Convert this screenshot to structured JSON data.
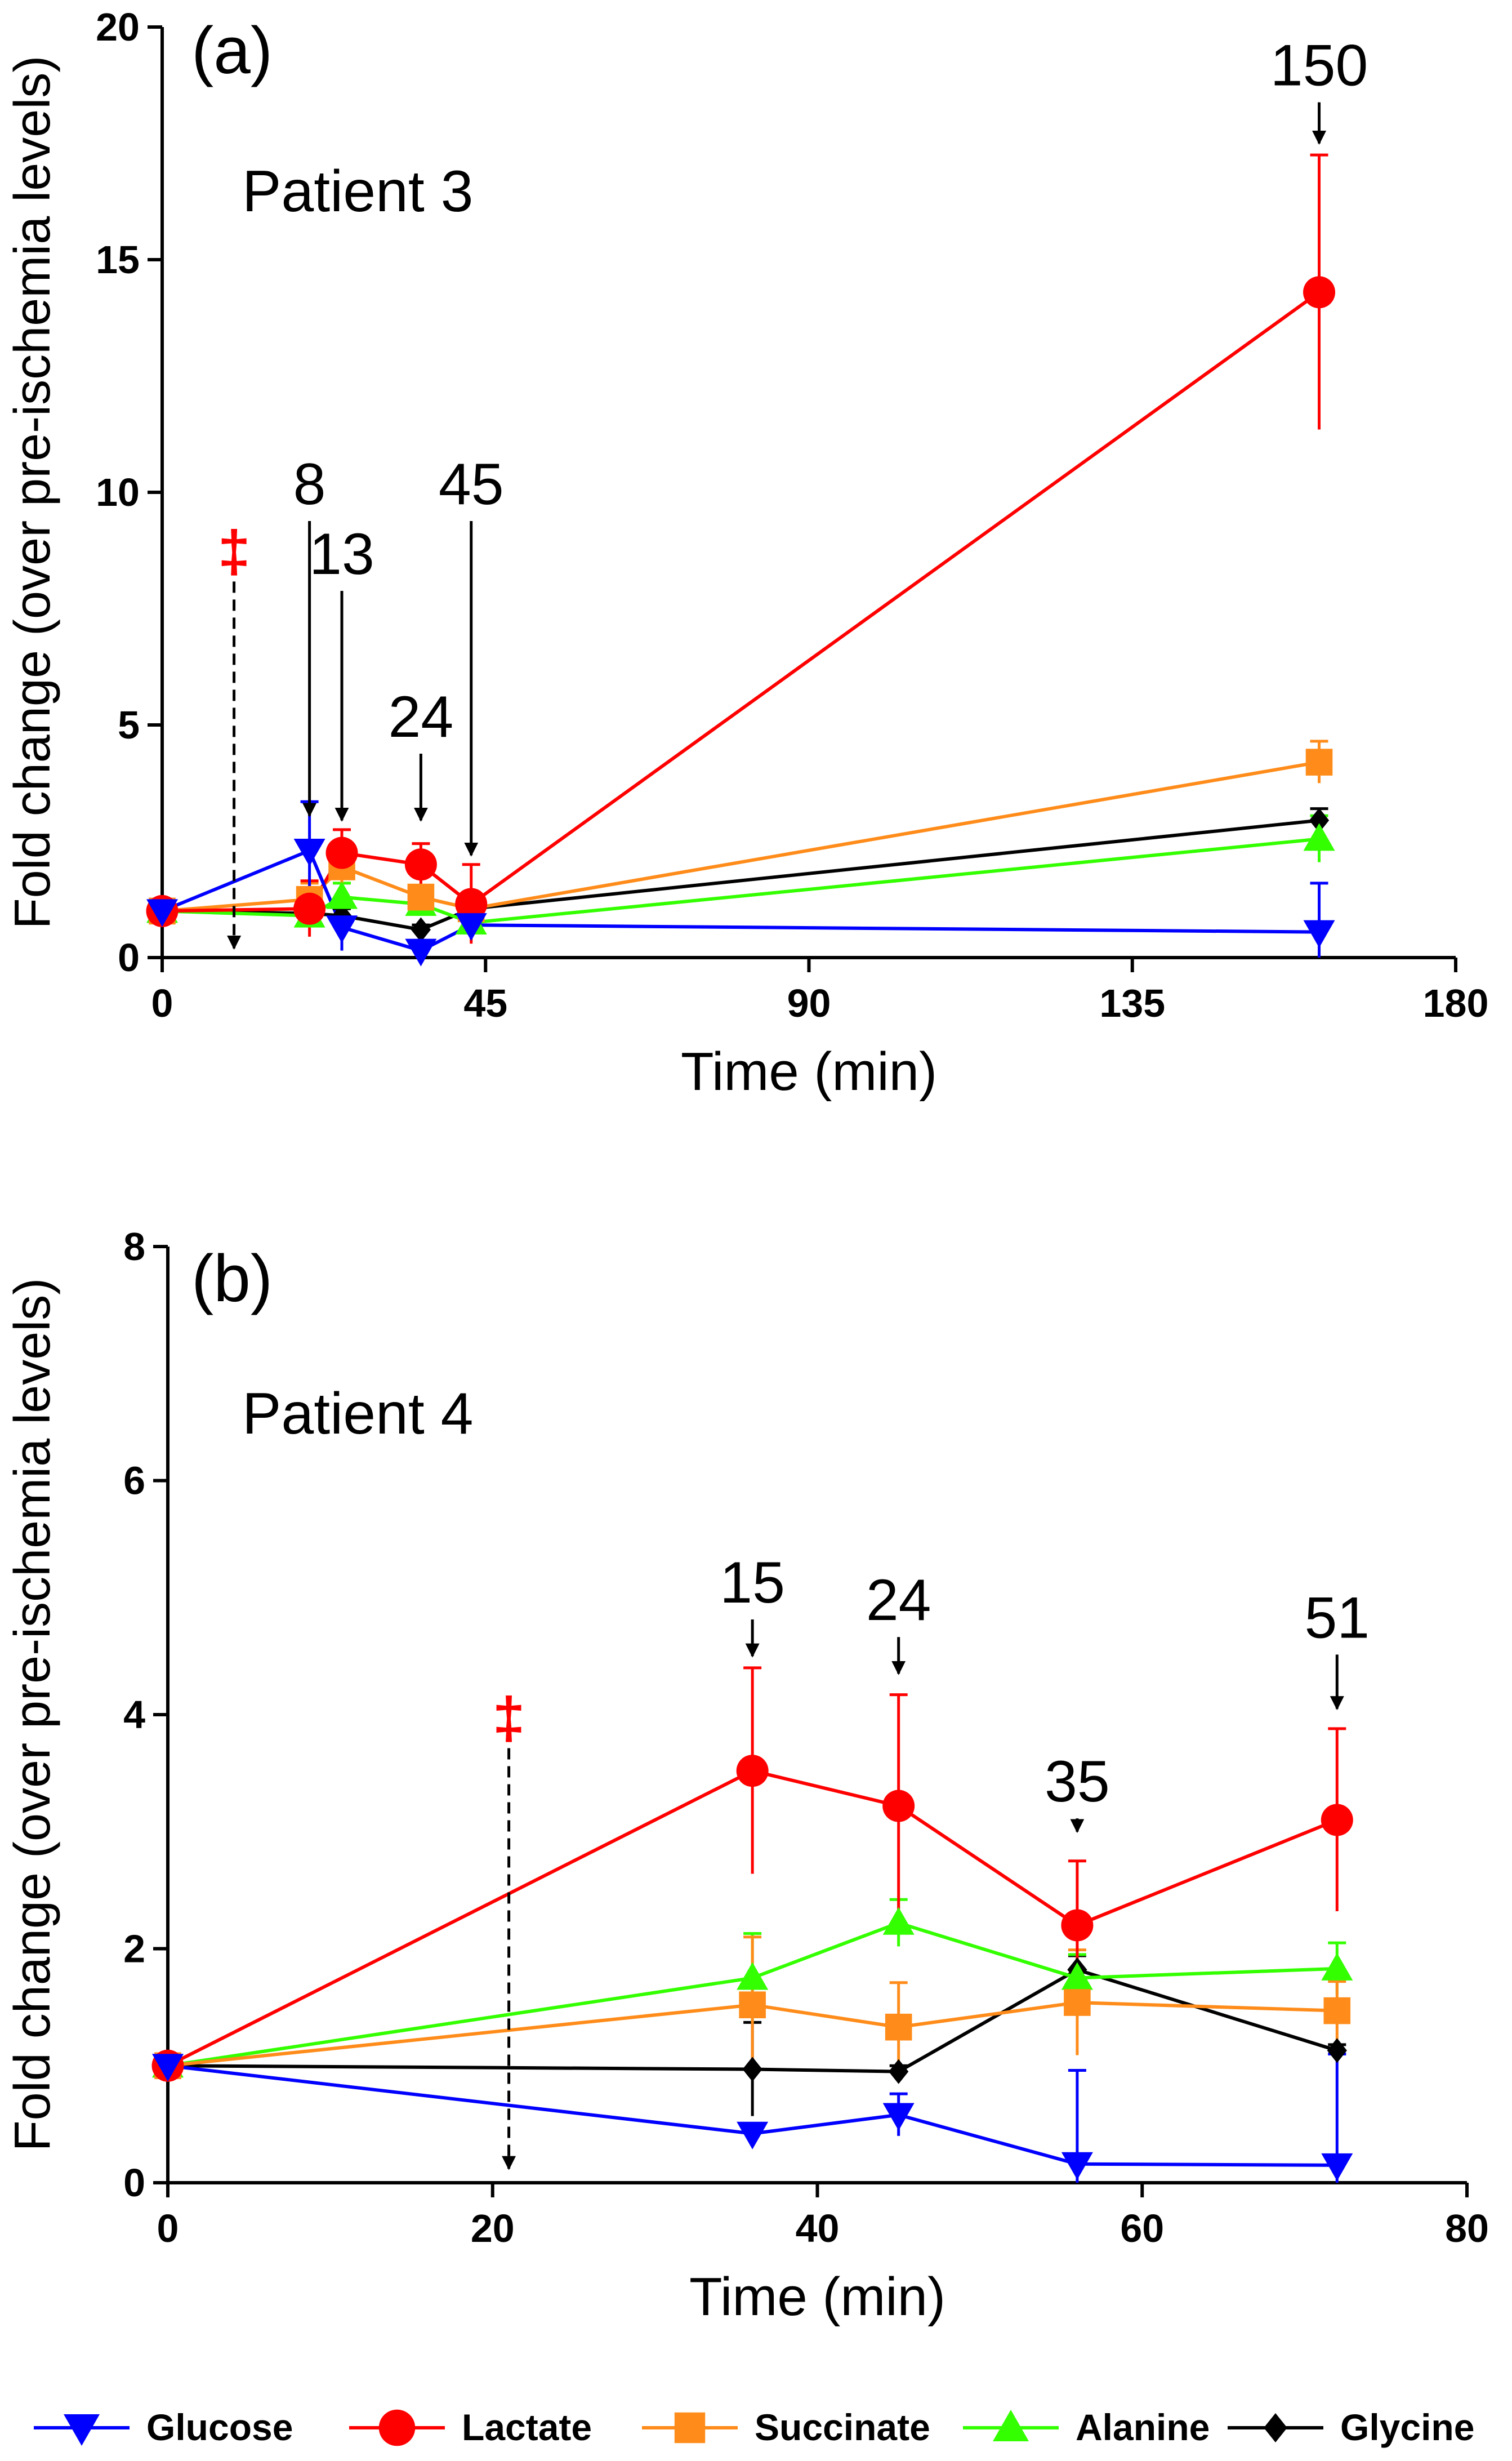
{
  "chart_data": [
    {
      "type": "line",
      "panel_label": "(a)",
      "title": "Patient 3",
      "xlabel": "Time (min)",
      "ylabel": "Fold change (over pre-ischemia levels)",
      "xlim": [
        0,
        180
      ],
      "ylim": [
        0,
        20
      ],
      "xticks": [
        0,
        45,
        90,
        135,
        180
      ],
      "yticks": [
        0,
        5,
        10,
        15,
        20
      ],
      "xtick_labels": [
        "0",
        "45",
        "90",
        "135",
        "180"
      ],
      "ytick_labels": [
        "0",
        "5",
        "10",
        "15",
        "20"
      ],
      "series": [
        {
          "name": "Glucose",
          "color": "#0000ff",
          "marker": "triangle-down",
          "x": [
            0,
            20.5,
            25,
            36,
            43,
            161
          ],
          "y": [
            1.0,
            2.3,
            0.65,
            0.15,
            0.7,
            0.55
          ],
          "err": [
            0,
            1.05,
            0.5,
            0.2,
            0.3,
            1.05
          ]
        },
        {
          "name": "Lactate",
          "color": "#ff0000",
          "marker": "circle",
          "x": [
            0,
            20.5,
            25,
            36,
            43,
            161
          ],
          "y": [
            1.0,
            1.05,
            2.25,
            2.0,
            1.15,
            14.3
          ],
          "err": [
            0,
            0.6,
            0.5,
            0.45,
            0.85,
            2.95
          ]
        },
        {
          "name": "Succinate",
          "color": "#ff8c1a",
          "marker": "square",
          "x": [
            0,
            20.5,
            25,
            36,
            43,
            161
          ],
          "y": [
            1.0,
            1.25,
            1.95,
            1.3,
            1.05,
            4.2
          ],
          "err": [
            0,
            0.35,
            0.4,
            0.25,
            0.2,
            0.45
          ]
        },
        {
          "name": "Alanine",
          "color": "#33ff00",
          "marker": "triangle-up",
          "x": [
            0,
            20.5,
            25,
            36,
            43,
            161
          ],
          "y": [
            1.0,
            0.9,
            1.3,
            1.15,
            0.75,
            2.55
          ],
          "err": [
            0,
            0.25,
            0.3,
            0.2,
            0.2,
            0.5
          ]
        },
        {
          "name": "Glycine",
          "color": "#000000",
          "marker": "diamond",
          "x": [
            0,
            20.5,
            25,
            36,
            43,
            161
          ],
          "y": [
            1.0,
            0.95,
            0.9,
            0.6,
            1.05,
            2.95
          ],
          "err": [
            0,
            0.1,
            0.15,
            0.1,
            0.1,
            0.25
          ]
        }
      ],
      "annotations": [
        {
          "text": "8",
          "x": 20.5,
          "y_top": 9.6,
          "y_tip": 3.05,
          "size": "large"
        },
        {
          "text": "13",
          "x": 25,
          "y_top": 8.1,
          "y_tip": 2.95,
          "size": "large"
        },
        {
          "text": "24",
          "x": 36,
          "y_top": 4.6,
          "y_tip": 2.95,
          "size": "large"
        },
        {
          "text": "45",
          "x": 43,
          "y_top": 9.6,
          "y_tip": 2.2,
          "size": "large"
        },
        {
          "text": "150",
          "x": 161,
          "y_top": 18.6,
          "y_tip": 17.5,
          "size": "large"
        }
      ],
      "ischemia_marker": {
        "text": "‡",
        "x": 10,
        "y_top": 8.3,
        "y_tip": 0.2,
        "color": "#ff0000"
      }
    },
    {
      "type": "line",
      "panel_label": "(b)",
      "title": "Patient 4",
      "xlabel": "Time (min)",
      "ylabel": "Fold change (over pre-ischemia levels)",
      "xlim": [
        0,
        80
      ],
      "ylim": [
        0,
        8
      ],
      "xticks": [
        0,
        20,
        40,
        60,
        80
      ],
      "yticks": [
        0,
        2,
        4,
        6,
        8
      ],
      "xtick_labels": [
        "0",
        "20",
        "40",
        "60",
        "80"
      ],
      "ytick_labels": [
        "0",
        "2",
        "4",
        "6",
        "8"
      ],
      "series": [
        {
          "name": "Glucose",
          "color": "#0000ff",
          "marker": "triangle-down",
          "x": [
            0,
            36,
            45,
            56,
            72
          ],
          "y": [
            1.0,
            0.42,
            0.58,
            0.16,
            0.15
          ],
          "err": [
            0,
            0.05,
            0.18,
            0.8,
            0.95
          ]
        },
        {
          "name": "Lactate",
          "color": "#ff0000",
          "marker": "circle",
          "x": [
            0,
            36,
            45,
            56,
            72
          ],
          "y": [
            1.0,
            3.52,
            3.22,
            2.2,
            3.1
          ],
          "err": [
            0,
            0.88,
            0.95,
            0.55,
            0.78
          ]
        },
        {
          "name": "Succinate",
          "color": "#ff8c1a",
          "marker": "square",
          "x": [
            0,
            36,
            45,
            56,
            72
          ],
          "y": [
            1.0,
            1.52,
            1.33,
            1.54,
            1.47
          ],
          "err": [
            0,
            0.58,
            0.38,
            0.45,
            0.25
          ]
        },
        {
          "name": "Alanine",
          "color": "#33ff00",
          "marker": "triangle-up",
          "x": [
            0,
            36,
            45,
            56,
            72
          ],
          "y": [
            1.0,
            1.75,
            2.22,
            1.75,
            1.83
          ],
          "err": [
            0,
            0.38,
            0.2,
            0.2,
            0.22
          ]
        },
        {
          "name": "Glycine",
          "color": "#000000",
          "marker": "diamond",
          "x": [
            0,
            36,
            45,
            56,
            72
          ],
          "y": [
            1.0,
            0.97,
            0.95,
            1.82,
            1.13
          ],
          "err": [
            0,
            0.4,
            0.05,
            0.12,
            0.05
          ]
        }
      ],
      "annotations": [
        {
          "text": "15",
          "x": 36,
          "y_top": 4.9,
          "y_tip": 4.5,
          "size": "large"
        },
        {
          "text": "24",
          "x": 45,
          "y_top": 4.75,
          "y_tip": 4.35,
          "size": "large"
        },
        {
          "text": "35",
          "x": 56,
          "y_top": 3.2,
          "y_tip": 3.0,
          "size": "large"
        },
        {
          "text": "51",
          "x": 72,
          "y_top": 4.6,
          "y_tip": 4.05,
          "size": "large"
        }
      ],
      "ischemia_marker": {
        "text": "‡",
        "x": 21,
        "y_top": 3.8,
        "y_tip": 0.12,
        "color": "#ff0000"
      }
    }
  ],
  "legend": {
    "placement": "bottom",
    "items": [
      {
        "label": "Glucose",
        "color": "#0000ff",
        "marker": "triangle-down"
      },
      {
        "label": "Lactate",
        "color": "#ff0000",
        "marker": "circle"
      },
      {
        "label": "Succinate",
        "color": "#ff8c1a",
        "marker": "square"
      },
      {
        "label": "Alanine",
        "color": "#33ff00",
        "marker": "triangle-up"
      },
      {
        "label": "Glycine",
        "color": "#000000",
        "marker": "diamond"
      }
    ]
  }
}
